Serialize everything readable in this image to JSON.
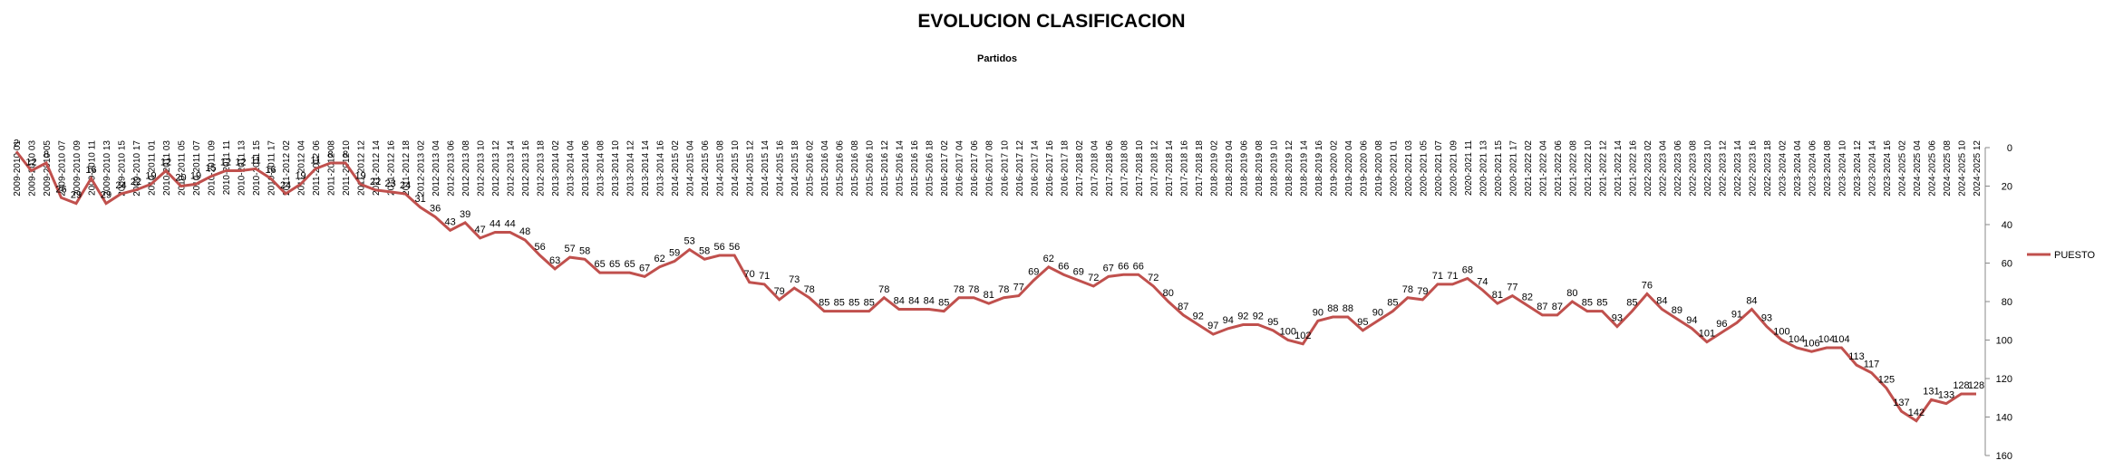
{
  "chart_data": {
    "type": "line",
    "title": "EVOLUCION CLASIFICACION",
    "x_label": "Partidos",
    "categories": [
      "2009-2010 01",
      "2009-2010 03",
      "2009-2010 05",
      "2009-2010 07",
      "2009-2010 09",
      "2009-2010 11",
      "2009-2010 13",
      "2009-2010 15",
      "2009-2010 17",
      "2010-2011 01",
      "2010-2011 03",
      "2010-2011 05",
      "2010-2011 07",
      "2010-2011 09",
      "2010-2011 11",
      "2010-2011 13",
      "2010-2011 15",
      "2010-2011 17",
      "2011-2012 02",
      "2011-2012 04",
      "2011-2012 06",
      "2011-2012 08",
      "2011-2012 10",
      "2011-2012 12",
      "2011-2012 14",
      "2011-2012 16",
      "2011-2012 18",
      "2012-2013 02",
      "2012-2013 04",
      "2012-2013 06",
      "2012-2013 08",
      "2012-2013 10",
      "2012-2013 12",
      "2012-2013 14",
      "2012-2013 16",
      "2012-2013 18",
      "2013-2014 02",
      "2013-2014 04",
      "2013-2014 06",
      "2013-2014 08",
      "2013-2014 10",
      "2013-2014 12",
      "2013-2014 14",
      "2013-2014 16",
      "2014-2015 02",
      "2014-2015 04",
      "2014-2015 06",
      "2014-2015 08",
      "2014-2015 10",
      "2014-2015 12",
      "2014-2015 14",
      "2014-2015 16",
      "2014-2015 18",
      "2015-2016 02",
      "2015-2016 04",
      "2015-2016 06",
      "2015-2016 08",
      "2015-2016 10",
      "2015-2016 12",
      "2015-2016 14",
      "2015-2016 16",
      "2015-2016 18",
      "2016-2017 02",
      "2016-2017 04",
      "2016-2017 06",
      "2016-2017 08",
      "2016-2017 10",
      "2016-2017 12",
      "2016-2017 14",
      "2016-2017 16",
      "2016-2017 18",
      "2017-2018 02",
      "2017-2018 04",
      "2017-2018 06",
      "2017-2018 08",
      "2017-2018 10",
      "2017-2018 12",
      "2017-2018 14",
      "2017-2018 16",
      "2017-2018 18",
      "2018-2019 02",
      "2018-2019 04",
      "2018-2019 06",
      "2018-2019 08",
      "2018-2019 10",
      "2018-2019 12",
      "2018-2019 14",
      "2018-2019 16",
      "2019-2020 02",
      "2019-2020 04",
      "2019-2020 06",
      "2019-2020 08",
      "2020-2021 01",
      "2020-2021 03",
      "2020-2021 05",
      "2020-2021 07",
      "2020-2021 09",
      "2020-2021 11",
      "2020-2021 13",
      "2020-2021 15",
      "2020-2021 17",
      "2021-2022 02",
      "2021-2022 04",
      "2021-2022 06",
      "2021-2022 08",
      "2021-2022 10",
      "2021-2022 12",
      "2021-2022 14",
      "2021-2022 16",
      "2022-2023 02",
      "2022-2023 04",
      "2022-2023 06",
      "2022-2023 08",
      "2022-2023 10",
      "2022-2023 12",
      "2022-2023 14",
      "2022-2023 16",
      "2022-2023 18",
      "2023-2024 02",
      "2023-2024 04",
      "2023-2024 06",
      "2023-2024 08",
      "2023-2024 10",
      "2023-2024 12",
      "2023-2024 14",
      "2023-2024 16",
      "2024-2025 02",
      "2024-2025 04",
      "2024-2025 06",
      "2024-2025 08",
      "2024-2025 10",
      "2024-2025 12"
    ],
    "series": [
      {
        "name": "PUESTO",
        "color": "#c0504d",
        "values": [
          2,
          12,
          8,
          26,
          29,
          16,
          29,
          24,
          22,
          19,
          12,
          20,
          19,
          15,
          12,
          12,
          11,
          16,
          24,
          19,
          11,
          8,
          8,
          19,
          22,
          23,
          24,
          31,
          36,
          43,
          39,
          47,
          44,
          44,
          48,
          56,
          63,
          57,
          58,
          65,
          65,
          65,
          67,
          62,
          59,
          53,
          58,
          56,
          56,
          70,
          71,
          79,
          73,
          78,
          85,
          85,
          85,
          85,
          78,
          84,
          84,
          84,
          85,
          78,
          78,
          81,
          78,
          77,
          69,
          62,
          66,
          69,
          72,
          67,
          66,
          66,
          72,
          80,
          87,
          92,
          97,
          94,
          92,
          92,
          95,
          100,
          102,
          90,
          88,
          88,
          95,
          90,
          85,
          78,
          79,
          71,
          71,
          68,
          74,
          81,
          77,
          82,
          87,
          87,
          80,
          85,
          85,
          93,
          85,
          76,
          84,
          89,
          94,
          101,
          96,
          91,
          84,
          93,
          100,
          104,
          106,
          104,
          104,
          113,
          117,
          125,
          137,
          142,
          131,
          133,
          128,
          128
        ]
      }
    ],
    "ylim": [
      0,
      160
    ],
    "yticks": [
      0,
      20,
      40,
      60,
      80,
      100,
      120,
      140,
      160
    ],
    "y_reversed": true,
    "legend": "right"
  }
}
